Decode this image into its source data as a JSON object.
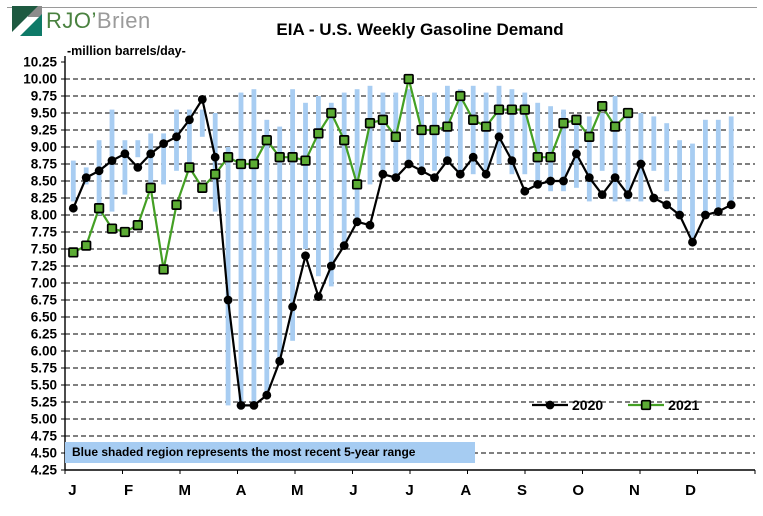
{
  "logo": {
    "green": "RJO’",
    "gray": "Brien"
  },
  "chart_data": {
    "type": "line_with_range_bars",
    "title": "EIA - U.S. Weekly Gasoline Demand",
    "unit_label": "-million barrels/day-",
    "note": "Blue shaded region represents the most recent 5-year range",
    "y_axis": {
      "min": 4.25,
      "max": 10.25,
      "step": 0.25,
      "tick_labels": [
        "10.25",
        "10.00",
        "9.75",
        "9.50",
        "9.25",
        "9.00",
        "8.75",
        "8.50",
        "8.25",
        "8.00",
        "7.75",
        "7.50",
        "7.25",
        "7.00",
        "6.75",
        "6.50",
        "6.25",
        "6.00",
        "5.75",
        "5.50",
        "5.25",
        "5.00",
        "4.75",
        "4.50",
        "4.25"
      ]
    },
    "x_axis": {
      "month_labels": [
        "J",
        "F",
        "M",
        "A",
        "M",
        "J",
        "J",
        "A",
        "S",
        "O",
        "N",
        "D"
      ]
    },
    "colors": {
      "range_bar": "#a8cdf2",
      "series_2020": "#000000",
      "series_2021_line": "#44a024",
      "series_2021_fill": "#5cac34",
      "grid": "#000000",
      "note_bg": "#a6ccf2"
    },
    "legend_position": "bottom-right-inside",
    "grid": "dashed-horizontal",
    "series": [
      {
        "name": "2020",
        "marker": "circle",
        "color": "#000000",
        "values": [
          8.1,
          8.55,
          8.65,
          8.8,
          8.9,
          8.7,
          8.9,
          9.05,
          9.15,
          9.4,
          9.7,
          8.85,
          6.75,
          5.2,
          5.2,
          5.35,
          5.85,
          6.65,
          7.4,
          6.8,
          7.25,
          7.55,
          7.9,
          7.85,
          8.6,
          8.55,
          8.75,
          8.65,
          8.55,
          8.8,
          8.6,
          8.85,
          8.6,
          9.15,
          8.8,
          8.35,
          8.45,
          8.5,
          8.5,
          8.9,
          8.55,
          8.3,
          8.55,
          8.3,
          8.75,
          8.25,
          8.15,
          8.0,
          7.6,
          8.0,
          8.05,
          8.15
        ]
      },
      {
        "name": "2021",
        "marker": "square",
        "color": "#44a024",
        "fill": "#5cac34",
        "values": [
          7.45,
          7.55,
          8.1,
          7.8,
          7.75,
          7.85,
          8.4,
          7.2,
          8.15,
          8.7,
          8.4,
          8.6,
          8.85,
          8.75,
          8.75,
          9.1,
          8.85,
          8.85,
          8.8,
          9.2,
          9.5,
          9.1,
          8.45,
          9.35,
          9.4,
          9.15,
          10.0,
          9.25,
          9.25,
          9.3,
          9.75,
          9.4,
          9.3,
          9.55,
          9.55,
          9.55,
          8.85,
          8.85,
          9.35,
          9.4,
          9.15,
          9.6,
          9.3,
          9.5
        ]
      }
    ],
    "range_bars": [
      [
        8.2,
        8.8
      ],
      [
        8.45,
        8.7
      ],
      [
        8.0,
        9.1
      ],
      [
        8.05,
        9.55
      ],
      [
        8.3,
        9.1
      ],
      [
        8.85,
        9.1
      ],
      [
        8.35,
        9.2
      ],
      [
        8.45,
        9.2
      ],
      [
        8.65,
        9.55
      ],
      [
        8.7,
        9.55
      ],
      [
        9.15,
        9.55
      ],
      [
        8.05,
        9.5
      ],
      [
        5.2,
        9.0
      ],
      [
        5.2,
        9.8
      ],
      [
        5.15,
        9.85
      ],
      [
        5.35,
        9.4
      ],
      [
        5.85,
        9.3
      ],
      [
        6.15,
        9.85
      ],
      [
        7.5,
        9.65
      ],
      [
        7.1,
        9.75
      ],
      [
        6.95,
        9.65
      ],
      [
        7.55,
        9.8
      ],
      [
        7.85,
        9.85
      ],
      [
        8.45,
        9.9
      ],
      [
        8.55,
        9.8
      ],
      [
        8.6,
        9.8
      ],
      [
        8.8,
        9.85
      ],
      [
        8.65,
        9.75
      ],
      [
        8.65,
        9.8
      ],
      [
        8.75,
        9.9
      ],
      [
        8.65,
        9.85
      ],
      [
        8.6,
        9.9
      ],
      [
        8.65,
        9.8
      ],
      [
        8.75,
        9.9
      ],
      [
        8.6,
        9.85
      ],
      [
        8.6,
        9.8
      ],
      [
        8.45,
        9.65
      ],
      [
        8.35,
        9.6
      ],
      [
        8.35,
        9.55
      ],
      [
        8.4,
        9.45
      ],
      [
        8.2,
        9.45
      ],
      [
        8.65,
        9.5
      ],
      [
        8.2,
        9.75
      ],
      [
        8.2,
        9.45
      ],
      [
        8.2,
        9.5
      ],
      [
        8.65,
        9.45
      ],
      [
        8.35,
        9.35
      ],
      [
        7.95,
        9.1
      ],
      [
        7.55,
        9.05
      ],
      [
        8.0,
        9.4
      ],
      [
        8.05,
        9.4
      ],
      [
        8.2,
        9.45
      ]
    ]
  }
}
